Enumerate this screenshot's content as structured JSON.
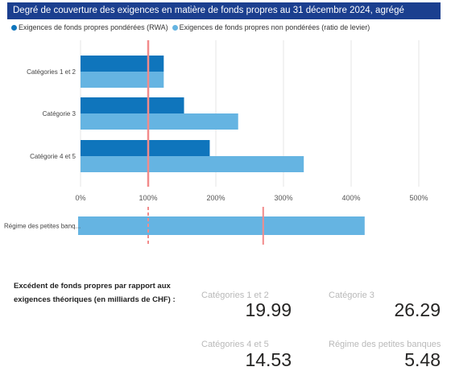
{
  "title": "Degré de couverture des exigences en matière de fonds propres au 31 décembre 2024, agrégé",
  "legend": [
    {
      "label": "Exigences de fonds propres pondérées (RWA)",
      "color": "#0f75bc"
    },
    {
      "label": "Exigences de fonds propres non pondérées (ratio de levier)",
      "color": "#65b4e2"
    }
  ],
  "chart_data": [
    {
      "type": "bar",
      "orientation": "horizontal",
      "categories": [
        "Catégories 1 et 2",
        "Catégorie 3",
        "Catégorie 4 et 5"
      ],
      "series": [
        {
          "name": "Exigences de fonds propres pondérées (RWA)",
          "values": [
            123,
            153,
            191
          ],
          "color": "#0f75bc"
        },
        {
          "name": "Exigences de fonds propres non pondérées (ratio de levier)",
          "values": [
            123,
            233,
            330
          ],
          "color": "#65b4e2"
        }
      ],
      "reference_line": 100,
      "xlim": [
        0,
        500
      ],
      "xticks": [
        "0%",
        "100%",
        "200%",
        "300%",
        "400%",
        "500%"
      ],
      "grid": true
    },
    {
      "type": "bar",
      "orientation": "horizontal",
      "categories": [
        "Régime des petites banq..."
      ],
      "series": [
        {
          "name": "Exigences de fonds propres non pondérées (ratio de levier)",
          "values": [
            420
          ],
          "color": "#65b4e2"
        }
      ],
      "reference_lines": [
        100,
        270
      ],
      "xlim": [
        0,
        500
      ]
    }
  ],
  "excess": {
    "label": "Excédent de fonds propres par rapport aux exigences théoriques (en milliards de CHF) :",
    "cards": [
      {
        "label": "Catégories 1 et 2",
        "value": "19.99"
      },
      {
        "label": "Catégorie 3",
        "value": "26.29"
      },
      {
        "label": "Catégories 4 et 5",
        "value": "14.53"
      },
      {
        "label": "Régime des petites banques",
        "value": "5.48"
      }
    ]
  }
}
